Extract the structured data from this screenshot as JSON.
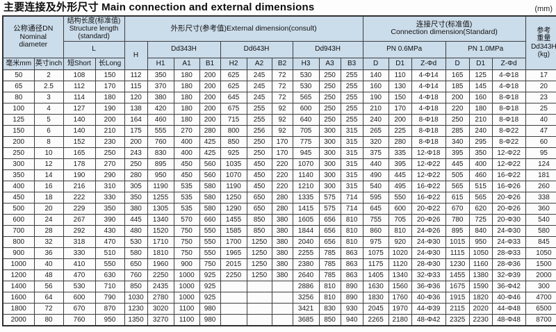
{
  "title": "主要连接及外形尺寸 Main connection and external dimensions",
  "unit_note": "(mm)",
  "table": {
    "headers": {
      "nominal_diameter": "公称通径DN\nNominal\ndiameter",
      "structure_length": "结构长度(标准值)\nStructure length\n(standard)",
      "l": "L",
      "mm": "毫米mm",
      "inch": "英寸inch",
      "short": "短Short",
      "long": "长Long",
      "h": "H",
      "external_group": "外形尺寸(参考值)External dimension(consult)",
      "dd343h": "Dd343H",
      "dd643h": "Dd643H",
      "dd943h": "Dd943H",
      "sub": [
        "H1",
        "A1",
        "B1",
        "H2",
        "A2",
        "B2",
        "H3",
        "A3",
        "B3"
      ],
      "connection_group": "连接尺寸(标准值)\nConnection dimension(Standard)",
      "pn06": "PN 0.6MPa",
      "pn10": "PN 1.0MPa",
      "d": "D",
      "d1": "D1",
      "zd": "Z-Φd",
      "weight": "参考\n重量\nDd343H\n(kg)"
    },
    "rows": [
      [
        50,
        2,
        108,
        150,
        112,
        350,
        180,
        200,
        625,
        245,
        72,
        530,
        250,
        255,
        140,
        110,
        "4-Φ14",
        165,
        125,
        "4-Φ18",
        17
      ],
      [
        65,
        2.5,
        112,
        170,
        115,
        370,
        180,
        200,
        625,
        245,
        72,
        530,
        250,
        255,
        160,
        130,
        "4-Φ14",
        185,
        145,
        "4-Φ18",
        20
      ],
      [
        80,
        3,
        114,
        180,
        120,
        380,
        180,
        200,
        645,
        245,
        72,
        565,
        250,
        255,
        190,
        150,
        "4-Φ18",
        200,
        160,
        "8-Φ18",
        23
      ],
      [
        100,
        4,
        127,
        190,
        138,
        420,
        180,
        200,
        675,
        255,
        92,
        600,
        250,
        255,
        210,
        170,
        "4-Φ18",
        220,
        180,
        "8-Φ18",
        25
      ],
      [
        125,
        5,
        140,
        200,
        164,
        460,
        180,
        200,
        715,
        255,
        92,
        640,
        250,
        255,
        240,
        200,
        "8-Φ18",
        250,
        210,
        "8-Φ18",
        40
      ],
      [
        150,
        6,
        140,
        210,
        175,
        555,
        270,
        280,
        800,
        256,
        92,
        705,
        300,
        315,
        265,
        225,
        "8-Φ18",
        285,
        240,
        "8-Φ22",
        47
      ],
      [
        200,
        8,
        152,
        230,
        200,
        760,
        400,
        425,
        850,
        250,
        170,
        775,
        300,
        315,
        320,
        280,
        "8-Φ18",
        340,
        295,
        "8-Φ22",
        60
      ],
      [
        250,
        10,
        165,
        250,
        243,
        830,
        400,
        425,
        925,
        250,
        170,
        945,
        300,
        315,
        375,
        335,
        "12-Φ18",
        395,
        350,
        "12-Φ22",
        95
      ],
      [
        300,
        12,
        178,
        270,
        250,
        895,
        450,
        560,
        1035,
        450,
        220,
        1070,
        300,
        315,
        440,
        395,
        "12-Φ22",
        445,
        400,
        "12-Φ22",
        124
      ],
      [
        350,
        14,
        190,
        290,
        280,
        950,
        450,
        560,
        1070,
        450,
        220,
        1140,
        300,
        315,
        490,
        445,
        "12-Φ22",
        505,
        460,
        "16-Φ22",
        181
      ],
      [
        400,
        16,
        216,
        310,
        305,
        1190,
        535,
        580,
        1190,
        450,
        220,
        1210,
        300,
        315,
        540,
        495,
        "16-Φ22",
        565,
        515,
        "16-Φ26",
        260
      ],
      [
        450,
        18,
        222,
        330,
        350,
        1255,
        535,
        580,
        1250,
        650,
        280,
        1335,
        575,
        714,
        595,
        550,
        "16-Φ22",
        615,
        565,
        "20-Φ26",
        338
      ],
      [
        500,
        20,
        229,
        350,
        380,
        1305,
        535,
        580,
        1290,
        650,
        280,
        1415,
        575,
        714,
        645,
        600,
        "20-Φ22",
        670,
        620,
        "20-Φ26",
        360
      ],
      [
        600,
        24,
        267,
        390,
        445,
        1340,
        570,
        660,
        1455,
        850,
        380,
        1605,
        656,
        810,
        755,
        705,
        "20-Φ26",
        780,
        725,
        "20-Φ30",
        540
      ],
      [
        700,
        28,
        292,
        430,
        480,
        1520,
        750,
        550,
        1585,
        850,
        380,
        1844,
        656,
        810,
        860,
        810,
        "24-Φ26",
        895,
        840,
        "24-Φ30",
        580
      ],
      [
        800,
        32,
        318,
        470,
        530,
        1710,
        750,
        550,
        1700,
        1250,
        380,
        2040,
        656,
        810,
        975,
        920,
        "24-Φ30",
        1015,
        950,
        "24-Φ33",
        845
      ],
      [
        900,
        36,
        330,
        510,
        580,
        1810,
        750,
        550,
        1965,
        1250,
        380,
        2255,
        785,
        863,
        1075,
        1020,
        "24-Φ30",
        1115,
        1050,
        "28-Φ33",
        1050
      ],
      [
        1000,
        40,
        410,
        550,
        650,
        1960,
        900,
        750,
        2015,
        1250,
        380,
        2380,
        785,
        863,
        1175,
        1120,
        "28-Φ30",
        1230,
        1160,
        "28-Φ36",
        1500
      ],
      [
        1200,
        48,
        470,
        630,
        760,
        2250,
        1000,
        925,
        2250,
        1250,
        380,
        2640,
        785,
        863,
        1405,
        1340,
        "32-Φ33",
        1455,
        1380,
        "32-Φ39",
        2000
      ],
      [
        1400,
        56,
        530,
        710,
        850,
        2435,
        1000,
        925,
        "",
        "",
        "",
        2886,
        810,
        890,
        1630,
        1560,
        "36-Φ36",
        1675,
        1590,
        "36-Φ42",
        300
      ],
      [
        1600,
        64,
        600,
        790,
        1030,
        2780,
        1000,
        925,
        "",
        "",
        "",
        3256,
        810,
        890,
        1830,
        1760,
        "40-Φ36",
        1915,
        1820,
        "40-Φ46",
        4700
      ],
      [
        1800,
        72,
        670,
        870,
        1230,
        3020,
        1100,
        980,
        "",
        "",
        "",
        3421,
        830,
        930,
        2045,
        1970,
        "44-Φ39",
        2115,
        2020,
        "44-Φ48",
        6500
      ],
      [
        2000,
        80,
        760,
        950,
        1350,
        3270,
        1100,
        980,
        "",
        "",
        "",
        3685,
        850,
        940,
        2265,
        2180,
        "48-Φ42",
        2325,
        2230,
        "48-Φ48",
        8700
      ]
    ]
  }
}
